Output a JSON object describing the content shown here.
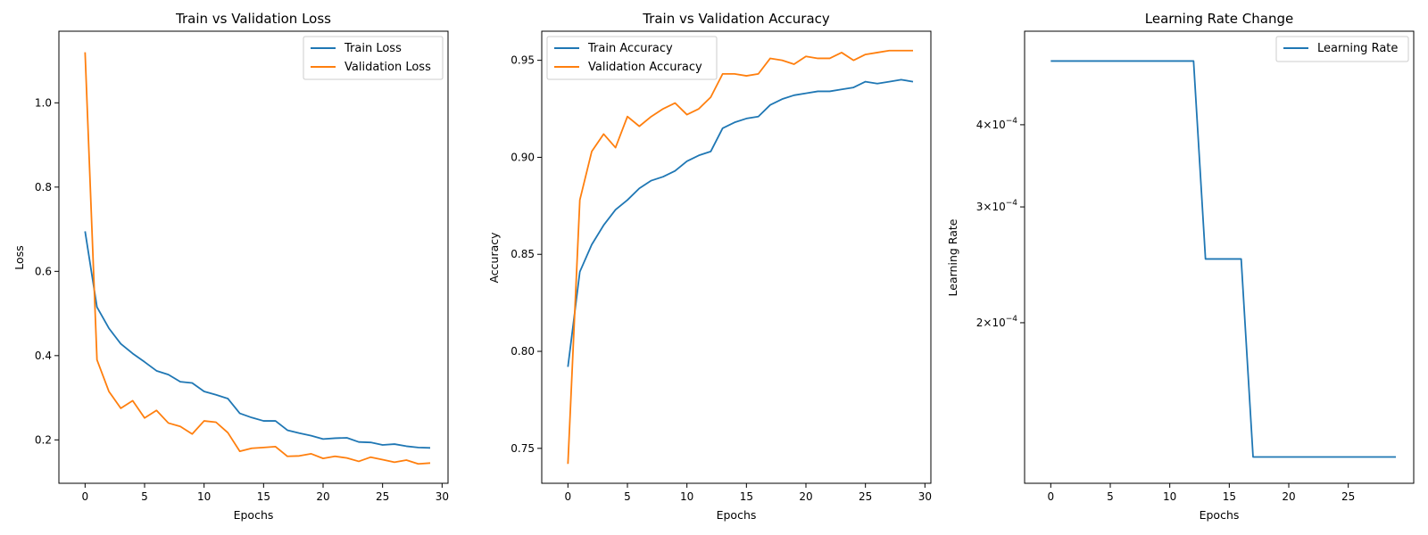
{
  "colors": {
    "train": "#1f77b4",
    "validation": "#ff7f0e"
  },
  "chart_data": [
    {
      "type": "line",
      "title": "Train vs Validation Loss",
      "xlabel": "Epochs",
      "ylabel": "Loss",
      "xlim": [
        -2.2,
        30.5
      ],
      "ylim": [
        0.097,
        1.17
      ],
      "xticks": [
        0,
        5,
        10,
        15,
        20,
        25,
        30
      ],
      "yticks": [
        0.2,
        0.4,
        0.6,
        0.8,
        1.0
      ],
      "ytick_labels": [
        "0.2",
        "0.4",
        "0.6",
        "0.8",
        "1.0"
      ],
      "legend": "upper-right",
      "x": [
        0,
        1,
        2,
        3,
        4,
        5,
        6,
        7,
        8,
        9,
        10,
        11,
        12,
        13,
        14,
        15,
        16,
        17,
        18,
        19,
        20,
        21,
        22,
        23,
        24,
        25,
        26,
        27,
        28,
        29
      ],
      "series": [
        {
          "name": "Train Loss",
          "color_key": "train",
          "values": [
            0.695,
            0.515,
            0.465,
            0.428,
            0.405,
            0.385,
            0.364,
            0.355,
            0.338,
            0.335,
            0.315,
            0.307,
            0.298,
            0.263,
            0.253,
            0.245,
            0.245,
            0.223,
            0.216,
            0.21,
            0.202,
            0.204,
            0.205,
            0.195,
            0.194,
            0.188,
            0.19,
            0.185,
            0.182,
            0.181
          ]
        },
        {
          "name": "Validation Loss",
          "color_key": "validation",
          "values": [
            1.12,
            0.39,
            0.315,
            0.275,
            0.293,
            0.252,
            0.27,
            0.24,
            0.232,
            0.214,
            0.245,
            0.242,
            0.217,
            0.173,
            0.18,
            0.182,
            0.184,
            0.161,
            0.162,
            0.167,
            0.156,
            0.161,
            0.157,
            0.149,
            0.159,
            0.153,
            0.147,
            0.152,
            0.143,
            0.145
          ]
        }
      ]
    },
    {
      "type": "line",
      "title": "Train vs Validation Accuracy",
      "xlabel": "Epochs",
      "ylabel": "Accuracy",
      "xlim": [
        -2.2,
        30.5
      ],
      "ylim": [
        0.732,
        0.965
      ],
      "xticks": [
        0,
        5,
        10,
        15,
        20,
        25,
        30
      ],
      "yticks": [
        0.75,
        0.8,
        0.85,
        0.9,
        0.95
      ],
      "ytick_labels": [
        "0.75",
        "0.80",
        "0.85",
        "0.90",
        "0.95"
      ],
      "legend": "upper-left",
      "x": [
        0,
        1,
        2,
        3,
        4,
        5,
        6,
        7,
        8,
        9,
        10,
        11,
        12,
        13,
        14,
        15,
        16,
        17,
        18,
        19,
        20,
        21,
        22,
        23,
        24,
        25,
        26,
        27,
        28,
        29
      ],
      "series": [
        {
          "name": "Train Accuracy",
          "color_key": "train",
          "values": [
            0.792,
            0.841,
            0.855,
            0.865,
            0.873,
            0.878,
            0.884,
            0.888,
            0.89,
            0.893,
            0.898,
            0.901,
            0.903,
            0.915,
            0.918,
            0.92,
            0.921,
            0.927,
            0.93,
            0.932,
            0.933,
            0.934,
            0.934,
            0.935,
            0.936,
            0.939,
            0.938,
            0.939,
            0.94,
            0.939
          ]
        },
        {
          "name": "Validation Accuracy",
          "color_key": "validation",
          "values": [
            0.742,
            0.878,
            0.903,
            0.912,
            0.905,
            0.921,
            0.916,
            0.921,
            0.925,
            0.928,
            0.922,
            0.925,
            0.931,
            0.943,
            0.943,
            0.942,
            0.943,
            0.951,
            0.95,
            0.948,
            0.952,
            0.951,
            0.951,
            0.954,
            0.95,
            0.953,
            0.954,
            0.955,
            0.955,
            0.955
          ]
        }
      ]
    },
    {
      "type": "line",
      "title": "Learning Rate Change",
      "xlabel": "Epochs",
      "ylabel": "Learning Rate",
      "yscale": "log",
      "xlim": [
        -2.2,
        30.5
      ],
      "ylim": [
        0.000114,
        0.000555
      ],
      "xticks": [
        0,
        5,
        10,
        15,
        20,
        25
      ],
      "yticks": [
        0.0002,
        0.0003,
        0.0004
      ],
      "ytick_labels": [
        "2",
        "3",
        "4"
      ],
      "ytick_label_base": "×10",
      "ytick_label_exp": "−4",
      "legend": "upper-right",
      "x": [
        0,
        1,
        2,
        3,
        4,
        5,
        6,
        7,
        8,
        9,
        10,
        11,
        12,
        13,
        14,
        15,
        16,
        17,
        18,
        19,
        20,
        21,
        22,
        23,
        24,
        25,
        26,
        27,
        28,
        29
      ],
      "series": [
        {
          "name": "Learning Rate",
          "color_key": "train",
          "values": [
            0.0005,
            0.0005,
            0.0005,
            0.0005,
            0.0005,
            0.0005,
            0.0005,
            0.0005,
            0.0005,
            0.0005,
            0.0005,
            0.0005,
            0.0005,
            0.00025,
            0.00025,
            0.00025,
            0.00025,
            0.000125,
            0.000125,
            0.000125,
            0.000125,
            0.000125,
            0.000125,
            0.000125,
            0.000125,
            0.000125,
            0.000125,
            0.000125,
            0.000125,
            0.000125
          ]
        }
      ]
    }
  ]
}
